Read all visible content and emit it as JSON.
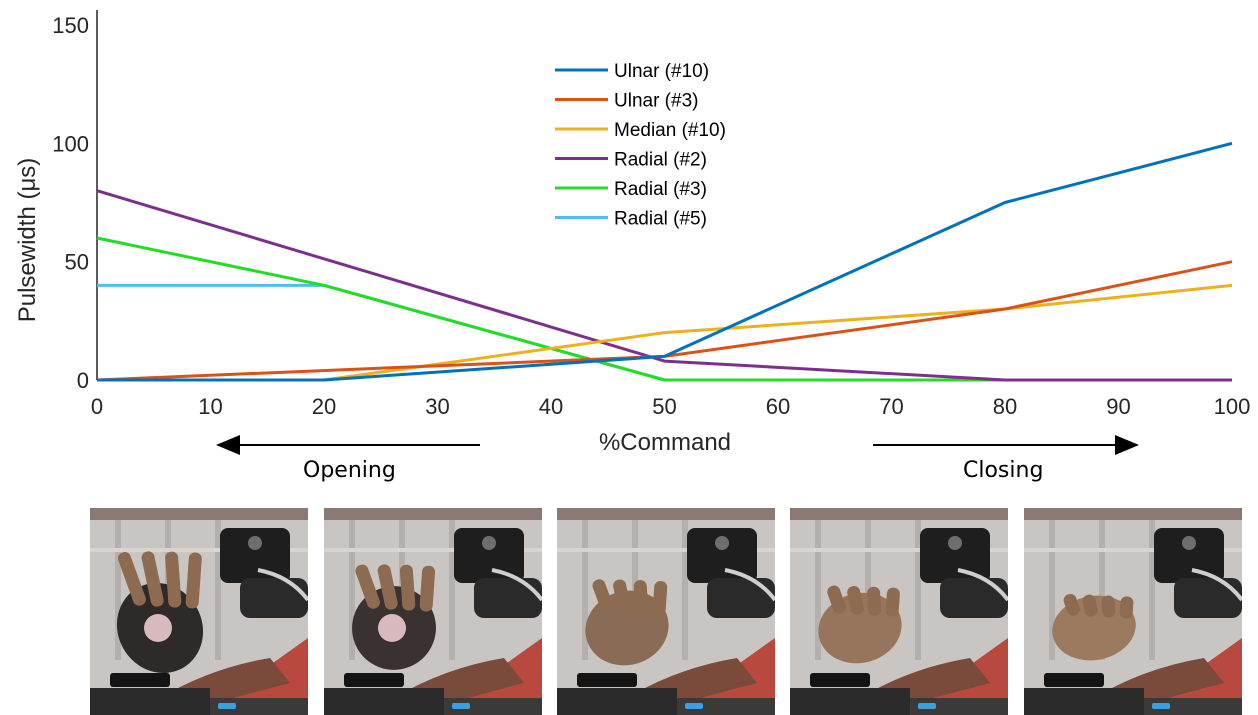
{
  "chart_data": {
    "type": "line",
    "xlabel": "%Command",
    "ylabel": "Pulsewidth (μs)",
    "xlim": [
      0,
      100
    ],
    "ylim": [
      0,
      150
    ],
    "xticks": [
      "0",
      "10",
      "20",
      "30",
      "40",
      "50",
      "60",
      "70",
      "80",
      "90",
      "100"
    ],
    "yticks": [
      "0",
      "50",
      "100",
      "150"
    ],
    "grid": false,
    "legend_position": "top-center",
    "series": [
      {
        "name": "Ulnar (#10)",
        "color": "#0072BD",
        "x": [
          0,
          20,
          50,
          80,
          100
        ],
        "y": [
          0,
          0,
          10,
          75,
          100
        ]
      },
      {
        "name": "Ulnar (#3)",
        "color": "#D95319",
        "x": [
          0,
          50,
          80,
          100
        ],
        "y": [
          0,
          10,
          30,
          50
        ]
      },
      {
        "name": "Median (#10)",
        "color": "#EDB120",
        "x": [
          0,
          20,
          50,
          80,
          100
        ],
        "y": [
          0,
          0,
          20,
          30,
          40
        ]
      },
      {
        "name": "Radial (#2)",
        "color": "#7E2F8E",
        "x": [
          0,
          50,
          80,
          100
        ],
        "y": [
          80,
          8,
          0,
          0
        ]
      },
      {
        "name": "Radial (#3)",
        "color": "#22DD22",
        "x": [
          0,
          20,
          50,
          100
        ],
        "y": [
          60,
          40,
          0,
          0
        ]
      },
      {
        "name": "Radial (#5)",
        "color": "#4DBEEE",
        "x": [
          0,
          20,
          50,
          100
        ],
        "y": [
          40,
          40,
          0,
          0
        ]
      }
    ]
  },
  "annotations": {
    "opening": "Opening",
    "closing": "Closing"
  },
  "photos": {
    "icons": [
      "hand-open-photo",
      "hand-partly-open-photo",
      "hand-neutral-photo",
      "hand-partly-closed-photo",
      "hand-closed-photo"
    ]
  }
}
